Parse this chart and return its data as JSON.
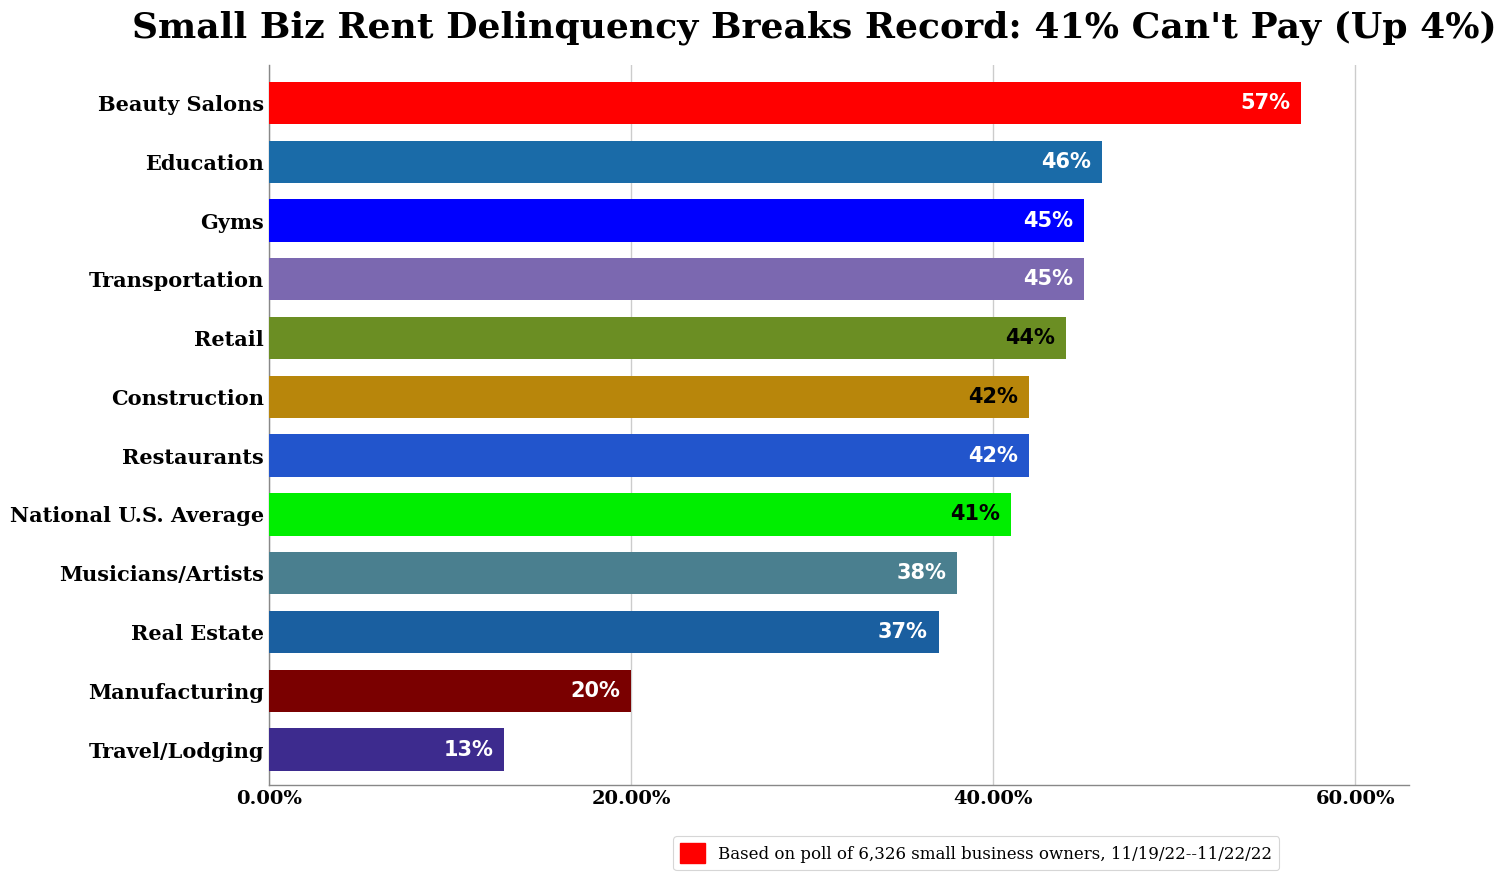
{
  "title": "Small Biz Rent Delinquency Breaks Record: 41% Can't Pay (Up 4%)",
  "categories": [
    "Travel/Lodging",
    "Manufacturing",
    "Real Estate",
    "Musicians/Artists",
    "National U.S. Average",
    "Restaurants",
    "Construction",
    "Retail",
    "Transportation",
    "Gyms",
    "Education",
    "Beauty Salons"
  ],
  "values": [
    13,
    20,
    37,
    38,
    41,
    42,
    42,
    44,
    45,
    45,
    46,
    57
  ],
  "bar_colors": [
    "#3d2b8e",
    "#7a0000",
    "#1a5fa0",
    "#4a7f8f",
    "#00ee00",
    "#2255cc",
    "#b8860b",
    "#6b8e23",
    "#7b68b0",
    "#0000ff",
    "#1a6ba8",
    "#ff0000"
  ],
  "value_text_colors": [
    "white",
    "white",
    "white",
    "white",
    "black",
    "white",
    "black",
    "black",
    "white",
    "white",
    "white",
    "white"
  ],
  "xlim": [
    0,
    63
  ],
  "xticks": [
    0,
    20,
    40,
    60
  ],
  "xticklabels": [
    "0.00%",
    "20.00%",
    "40.00%",
    "60.00%"
  ],
  "bar_height": 0.72,
  "label_fontsize": 15,
  "title_fontsize": 26,
  "tick_fontsize": 14,
  "value_label_fontsize": 15,
  "legend_text": "Based on poll of 6,326 small business owners, 11/19/22--11/22/22",
  "background_color": "#ffffff",
  "grid_color": "#cccccc"
}
